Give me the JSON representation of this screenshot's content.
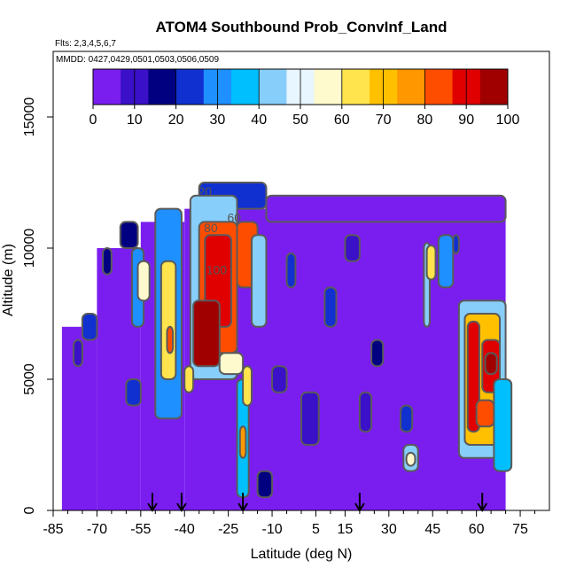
{
  "chart_data": {
    "type": "heatmap",
    "title": "ATOM4 Southbound Prob_ConvInf_Land",
    "flights_note": "Flts: 2,3,4,5,6,7",
    "dates_note": "MMDD: 0427,0429,0501,0503,0506,0509",
    "xlabel": "Latitude (deg N)",
    "ylabel": "Altitude (m)",
    "xlim": [
      -85,
      85
    ],
    "ylim": [
      0,
      17500
    ],
    "x_ticks": [
      -85,
      -70,
      -55,
      -40,
      -25,
      -10,
      5,
      15,
      30,
      45,
      60,
      75
    ],
    "y_ticks": [
      0,
      5000,
      10000,
      15000
    ],
    "colorbar": {
      "ticks": [
        0,
        10,
        20,
        30,
        40,
        50,
        60,
        70,
        80,
        90,
        100
      ],
      "colors": [
        "#7a1ef0",
        "#3a10c8",
        "#000080",
        "#1030d0",
        "#1e90ff",
        "#00bfff",
        "#87cefa",
        "#e8f6ff",
        "#fffacd",
        "#ffe44d",
        "#ffc000",
        "#ff9800",
        "#ff4d00",
        "#e00000",
        "#a00000"
      ]
    },
    "contour_labels": [
      {
        "text": "20",
        "lat": -33,
        "alt": 12000
      },
      {
        "text": "60",
        "lat": -23,
        "alt": 11000
      },
      {
        "text": "80",
        "lat": -31,
        "alt": 10600
      },
      {
        "text": "100",
        "lat": -29,
        "alt": 9000
      }
    ],
    "flight_markers_lat": [
      -51,
      -41,
      -20,
      20,
      62
    ],
    "regions": [
      {
        "lat": [
          -82,
          -70
        ],
        "alt": [
          0,
          7000
        ],
        "p": 0
      },
      {
        "lat": [
          -70,
          -55
        ],
        "alt": [
          0,
          10000
        ],
        "p": 0
      },
      {
        "lat": [
          -55,
          -40
        ],
        "alt": [
          0,
          11000
        ],
        "p": 0
      },
      {
        "lat": [
          -40,
          70
        ],
        "alt": [
          0,
          11500
        ],
        "p": 0
      },
      {
        "lat": [
          -35,
          -12
        ],
        "alt": [
          11500,
          12500
        ],
        "p": 20
      },
      {
        "lat": [
          -12,
          70
        ],
        "alt": [
          11000,
          12000
        ],
        "p": 5
      },
      {
        "lat": [
          -62,
          -56
        ],
        "alt": [
          10000,
          11000
        ],
        "p": 15
      },
      {
        "lat": [
          -58,
          -54
        ],
        "alt": [
          7000,
          10000
        ],
        "p": 30
      },
      {
        "lat": [
          -56,
          -52
        ],
        "alt": [
          8000,
          9500
        ],
        "p": 55
      },
      {
        "lat": [
          -50,
          -41
        ],
        "alt": [
          3500,
          11500
        ],
        "p": 30
      },
      {
        "lat": [
          -48,
          -43
        ],
        "alt": [
          5000,
          9500
        ],
        "p": 65
      },
      {
        "lat": [
          -46,
          -44
        ],
        "alt": [
          6000,
          7000
        ],
        "p": 80
      },
      {
        "lat": [
          -38,
          -22
        ],
        "alt": [
          5000,
          12000
        ],
        "p": 40
      },
      {
        "lat": [
          -35,
          -22
        ],
        "alt": [
          6000,
          11000
        ],
        "p": 80
      },
      {
        "lat": [
          -33,
          -24
        ],
        "alt": [
          7000,
          10500
        ],
        "p": 92
      },
      {
        "lat": [
          -37,
          -28
        ],
        "alt": [
          5500,
          8000
        ],
        "p": 95
      },
      {
        "lat": [
          -22,
          -15
        ],
        "alt": [
          8500,
          11000
        ],
        "p": 85
      },
      {
        "lat": [
          -17,
          -12
        ],
        "alt": [
          7000,
          10500
        ],
        "p": 45
      },
      {
        "lat": [
          -40,
          -37
        ],
        "alt": [
          4500,
          5500
        ],
        "p": 65
      },
      {
        "lat": [
          -22,
          -18
        ],
        "alt": [
          500,
          5000
        ],
        "p": 35
      },
      {
        "lat": [
          -21,
          -19
        ],
        "alt": [
          2000,
          3200
        ],
        "p": 75
      },
      {
        "lat": [
          -20,
          -17
        ],
        "alt": [
          4000,
          5500
        ],
        "p": 60
      },
      {
        "lat": [
          -28,
          -20
        ],
        "alt": [
          5200,
          6000
        ],
        "p": 55
      },
      {
        "lat": [
          -15,
          -10
        ],
        "alt": [
          500,
          1500
        ],
        "p": 15
      },
      {
        "lat": [
          0,
          6
        ],
        "alt": [
          2500,
          4500
        ],
        "p": 12
      },
      {
        "lat": [
          8,
          12
        ],
        "alt": [
          7000,
          8500
        ],
        "p": 25
      },
      {
        "lat": [
          15,
          20
        ],
        "alt": [
          9500,
          10500
        ],
        "p": 10
      },
      {
        "lat": [
          20,
          24
        ],
        "alt": [
          3000,
          4500
        ],
        "p": 12
      },
      {
        "lat": [
          24,
          28
        ],
        "alt": [
          5500,
          6500
        ],
        "p": 15
      },
      {
        "lat": [
          34,
          38
        ],
        "alt": [
          3000,
          4000
        ],
        "p": 25
      },
      {
        "lat": [
          35,
          40
        ],
        "alt": [
          1500,
          2500
        ],
        "p": 40
      },
      {
        "lat": [
          36,
          39
        ],
        "alt": [
          1700,
          2200
        ],
        "p": 55
      },
      {
        "lat": [
          42,
          44
        ],
        "alt": [
          7000,
          10200
        ],
        "p": 40
      },
      {
        "lat": [
          43,
          46
        ],
        "alt": [
          8800,
          10100
        ],
        "p": 60
      },
      {
        "lat": [
          47,
          52
        ],
        "alt": [
          8500,
          10500
        ],
        "p": 30
      },
      {
        "lat": [
          52,
          54
        ],
        "alt": [
          9800,
          10500
        ],
        "p": 20
      },
      {
        "lat": [
          54,
          70
        ],
        "alt": [
          2000,
          8000
        ],
        "p": 40
      },
      {
        "lat": [
          56,
          68
        ],
        "alt": [
          2500,
          7500
        ],
        "p": 70
      },
      {
        "lat": [
          57,
          61
        ],
        "alt": [
          3000,
          7200
        ],
        "p": 88
      },
      {
        "lat": [
          62,
          68
        ],
        "alt": [
          4500,
          6500
        ],
        "p": 92
      },
      {
        "lat": [
          63,
          67
        ],
        "alt": [
          5200,
          6000
        ],
        "p": 98
      },
      {
        "lat": [
          60,
          66
        ],
        "alt": [
          3200,
          4200
        ],
        "p": 80
      },
      {
        "lat": [
          66,
          72
        ],
        "alt": [
          1500,
          5000
        ],
        "p": 35
      },
      {
        "lat": [
          -60,
          -55
        ],
        "alt": [
          4000,
          5000
        ],
        "p": 20
      },
      {
        "lat": [
          -75,
          -70
        ],
        "alt": [
          6500,
          7500
        ],
        "p": 20
      },
      {
        "lat": [
          -78,
          -75
        ],
        "alt": [
          5500,
          6500
        ],
        "p": 12
      },
      {
        "lat": [
          -68,
          -65
        ],
        "alt": [
          9000,
          10000
        ],
        "p": 15
      },
      {
        "lat": [
          -5,
          -2
        ],
        "alt": [
          8500,
          9800
        ],
        "p": 20
      },
      {
        "lat": [
          -10,
          -5
        ],
        "alt": [
          4500,
          5500
        ],
        "p": 10
      }
    ]
  }
}
